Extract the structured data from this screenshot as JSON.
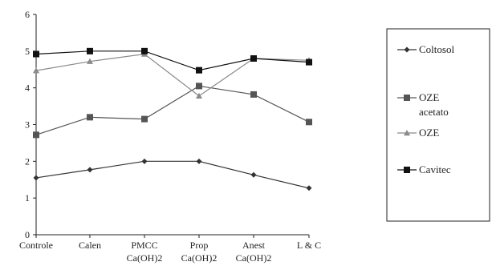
{
  "chart_data": {
    "type": "line",
    "title": "",
    "xlabel": "",
    "ylabel": "",
    "ylim": [
      0,
      6
    ],
    "yticks": [
      0,
      1,
      2,
      3,
      4,
      5,
      6
    ],
    "grid": false,
    "legend_position": "right",
    "categories": [
      [
        "Controle"
      ],
      [
        "Calen"
      ],
      [
        "PMCC",
        "Ca(OH)2"
      ],
      [
        "Prop",
        "Ca(OH)2"
      ],
      [
        "Anest",
        "Ca(OH)2"
      ],
      [
        "L & C"
      ]
    ],
    "series": [
      {
        "name": "Coltosol",
        "legend_lines": [
          "Coltosol"
        ],
        "marker": "diamond",
        "color": "#333333",
        "values": [
          1.55,
          1.77,
          2.0,
          2.0,
          1.63,
          1.27
        ]
      },
      {
        "name": "OZE acetato",
        "legend_lines": [
          "OZE",
          "acetato"
        ],
        "marker": "square",
        "color": "#555555",
        "values": [
          2.72,
          3.2,
          3.15,
          4.05,
          3.82,
          3.07
        ]
      },
      {
        "name": "OZE",
        "legend_lines": [
          "OZE"
        ],
        "marker": "triangle",
        "color": "#8a8a8a",
        "values": [
          4.47,
          4.72,
          4.92,
          3.78,
          4.8,
          4.75
        ]
      },
      {
        "name": "Cavitec",
        "legend_lines": [
          "Cavitec"
        ],
        "marker": "square",
        "color": "#111111",
        "values": [
          4.92,
          5.0,
          5.0,
          4.48,
          4.8,
          4.7
        ]
      }
    ]
  }
}
